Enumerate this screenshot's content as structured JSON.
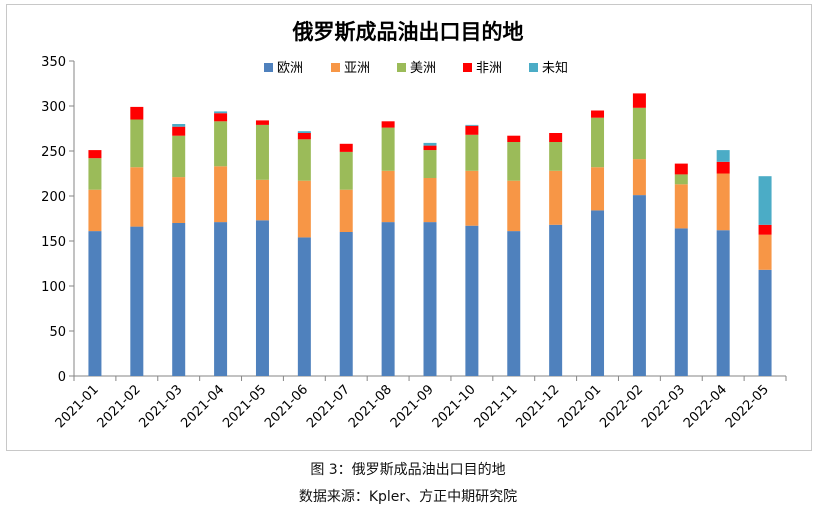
{
  "chart_data": {
    "type": "bar",
    "stacked": true,
    "title": "俄罗斯成品油出口目的地",
    "categories": [
      "2021-01",
      "2021-02",
      "2021-03",
      "2021-04",
      "2021-05",
      "2021-06",
      "2021-07",
      "2021-08",
      "2021-09",
      "2021-10",
      "2021-11",
      "2021-12",
      "2022-01",
      "2022-02",
      "2022-03",
      "2022-04",
      "2022-05"
    ],
    "series": [
      {
        "name": "欧洲",
        "color": "#4f81bd",
        "values": [
          161,
          166,
          170,
          171,
          173,
          154,
          160,
          171,
          171,
          167,
          161,
          168,
          184,
          201,
          164,
          162,
          118
        ]
      },
      {
        "name": "亚洲",
        "color": "#f79646",
        "values": [
          46,
          66,
          51,
          62,
          45,
          63,
          47,
          57,
          49,
          61,
          56,
          60,
          48,
          40,
          49,
          63,
          39
        ]
      },
      {
        "name": "美洲",
        "color": "#9bbb59",
        "values": [
          35,
          53,
          46,
          50,
          61,
          46,
          42,
          48,
          31,
          40,
          43,
          32,
          55,
          57,
          11,
          0,
          0
        ]
      },
      {
        "name": "非洲",
        "color": "#ff0000",
        "values": [
          9,
          14,
          10,
          9,
          5,
          7,
          9,
          7,
          5,
          10,
          7,
          10,
          8,
          16,
          12,
          13,
          11
        ]
      },
      {
        "name": "未知",
        "color": "#4bacc6",
        "values": [
          0,
          0,
          3,
          2,
          0,
          2,
          0,
          0,
          3,
          1,
          0,
          0,
          0,
          0,
          0,
          13,
          54
        ]
      }
    ],
    "ylim": [
      0,
      350
    ],
    "yticks": [
      0,
      50,
      100,
      150,
      200,
      250,
      300,
      350
    ],
    "grid": false,
    "legend": "top-center"
  },
  "caption": {
    "line1": "图 3：俄罗斯成品油出口目的地",
    "line2": "数据来源：Kpler、方正中期研究院"
  }
}
